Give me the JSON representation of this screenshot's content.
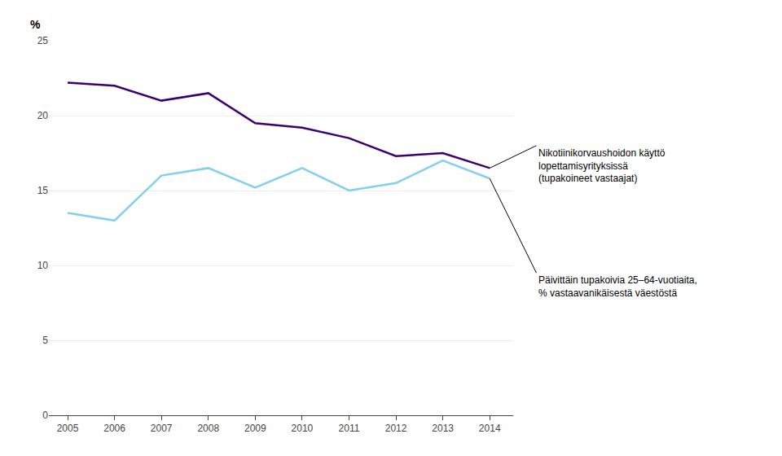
{
  "chart_data": {
    "type": "line",
    "x": [
      2005,
      2006,
      2007,
      2008,
      2009,
      2010,
      2011,
      2012,
      2013,
      2014
    ],
    "series": [
      {
        "name": "Nikotiinikorvaushoidon käyttö\nlopettamisyrityksissä\n(tupakoineet vastaajat)",
        "color": "#3d006e",
        "values": [
          22.2,
          22.0,
          21.0,
          21.5,
          19.5,
          19.2,
          18.5,
          17.3,
          17.5,
          16.5
        ]
      },
      {
        "name": "Päivittäin tupakoivia 25–64-vuotiaita,\n% vastaavanikäisestä väestöstä",
        "color": "#82d0f0",
        "values": [
          13.5,
          13.0,
          16.0,
          16.5,
          15.2,
          16.5,
          15.0,
          15.5,
          17.0,
          15.8
        ]
      }
    ],
    "ylabel": "%",
    "xlim": [
      2004.6,
      2014.5
    ],
    "xticks": [
      2005,
      2006,
      2007,
      2008,
      2009,
      2010,
      2011,
      2012,
      2013,
      2014
    ],
    "ylim": [
      0,
      25
    ],
    "yticks": [
      0,
      5,
      10,
      15,
      20,
      25
    ],
    "grid": true
  }
}
